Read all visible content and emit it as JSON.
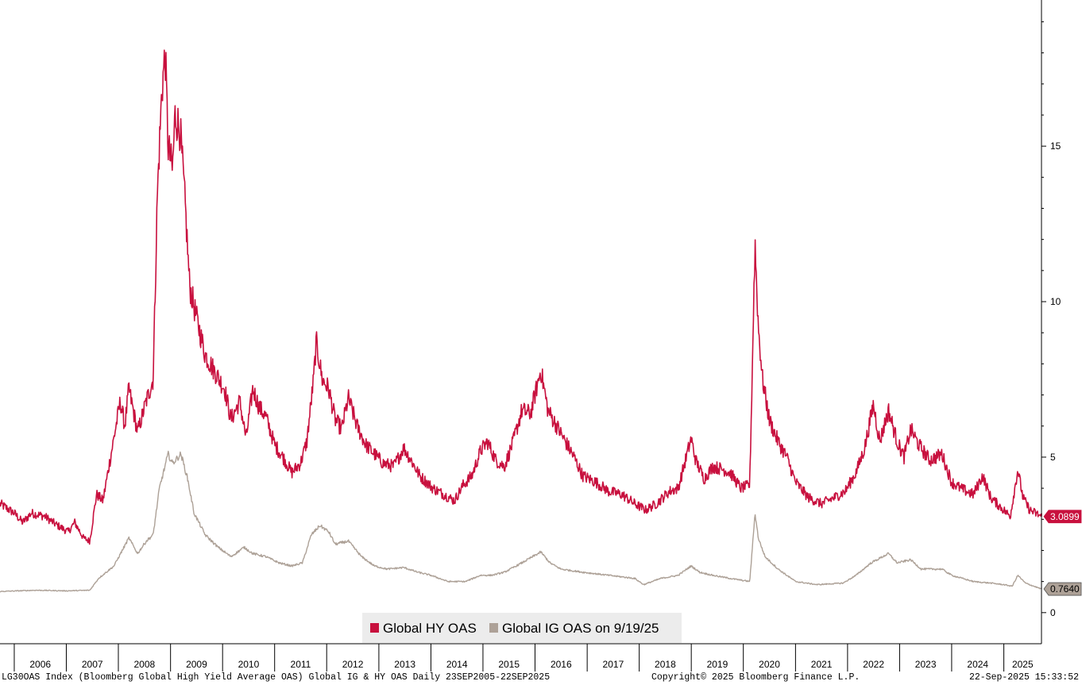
{
  "chart_data": {
    "type": "line",
    "title": "",
    "xlabel": "",
    "ylabel": "",
    "ylim": [
      -1.0,
      19.7
    ],
    "xlim": [
      "2005-09-23",
      "2025-09-22"
    ],
    "y_ticks": [
      "0",
      "5",
      "10",
      "15"
    ],
    "x_tick_labels": [
      "2006",
      "2007",
      "2008",
      "2009",
      "2010",
      "2011",
      "2012",
      "2013",
      "2014",
      "2015",
      "2016",
      "2017",
      "2018",
      "2019",
      "2020",
      "2021",
      "2022",
      "2023",
      "2024",
      "2025"
    ],
    "grid": false,
    "legend_position": "bottom-center",
    "series": [
      {
        "name": "Global HY OAS",
        "color": "#c8103e",
        "last_value": "3.0899",
        "points": [
          [
            "2005-09-23",
            3.5
          ],
          [
            "2006-01-01",
            3.2
          ],
          [
            "2006-03-01",
            2.9
          ],
          [
            "2006-05-01",
            3.2
          ],
          [
            "2006-08-01",
            3.1
          ],
          [
            "2006-11-01",
            2.8
          ],
          [
            "2007-01-15",
            2.6
          ],
          [
            "2007-03-01",
            2.9
          ],
          [
            "2007-05-01",
            2.4
          ],
          [
            "2007-06-15",
            2.3
          ],
          [
            "2007-08-01",
            3.8
          ],
          [
            "2007-09-15",
            3.6
          ],
          [
            "2007-11-15",
            5.2
          ],
          [
            "2008-01-15",
            6.8
          ],
          [
            "2008-02-15",
            6.0
          ],
          [
            "2008-03-15",
            7.2
          ],
          [
            "2008-05-15",
            5.8
          ],
          [
            "2008-07-15",
            6.8
          ],
          [
            "2008-09-01",
            7.5
          ],
          [
            "2008-10-01",
            13.5
          ],
          [
            "2008-11-01",
            16.8
          ],
          [
            "2008-11-25",
            18.0
          ],
          [
            "2008-12-15",
            15.0
          ],
          [
            "2009-01-15",
            14.2
          ],
          [
            "2009-02-01",
            16.0
          ],
          [
            "2009-03-10",
            15.5
          ],
          [
            "2009-04-15",
            13.0
          ],
          [
            "2009-05-15",
            10.5
          ],
          [
            "2009-07-01",
            9.5
          ],
          [
            "2009-09-01",
            8.3
          ],
          [
            "2009-11-01",
            7.8
          ],
          [
            "2010-01-15",
            7.2
          ],
          [
            "2010-03-01",
            6.2
          ],
          [
            "2010-05-01",
            6.8
          ],
          [
            "2010-06-15",
            5.6
          ],
          [
            "2010-08-01",
            7.2
          ],
          [
            "2010-09-15",
            6.6
          ],
          [
            "2010-11-01",
            6.3
          ],
          [
            "2011-01-01",
            5.4
          ],
          [
            "2011-03-01",
            5.0
          ],
          [
            "2011-05-01",
            4.5
          ],
          [
            "2011-07-01",
            4.8
          ],
          [
            "2011-08-15",
            5.5
          ],
          [
            "2011-10-01",
            7.5
          ],
          [
            "2011-10-20",
            8.7
          ],
          [
            "2011-12-01",
            7.5
          ],
          [
            "2012-01-15",
            7.2
          ],
          [
            "2012-03-01",
            6.2
          ],
          [
            "2012-04-15",
            5.9
          ],
          [
            "2012-06-01",
            6.9
          ],
          [
            "2012-08-01",
            6.0
          ],
          [
            "2012-10-01",
            5.4
          ],
          [
            "2012-12-01",
            5.1
          ],
          [
            "2013-02-01",
            4.8
          ],
          [
            "2013-04-15",
            4.7
          ],
          [
            "2013-06-25",
            5.3
          ],
          [
            "2013-08-15",
            4.9
          ],
          [
            "2013-10-15",
            4.4
          ],
          [
            "2014-01-15",
            4.0
          ],
          [
            "2014-04-01",
            3.8
          ],
          [
            "2014-06-15",
            3.6
          ],
          [
            "2014-08-15",
            4.1
          ],
          [
            "2014-10-15",
            4.4
          ],
          [
            "2014-12-15",
            5.2
          ],
          [
            "2015-02-01",
            5.5
          ],
          [
            "2015-04-01",
            4.9
          ],
          [
            "2015-06-01",
            4.7
          ],
          [
            "2015-08-01",
            5.5
          ],
          [
            "2015-10-01",
            6.5
          ],
          [
            "2015-12-01",
            6.4
          ],
          [
            "2016-02-11",
            7.8
          ],
          [
            "2016-04-01",
            6.5
          ],
          [
            "2016-06-01",
            6.0
          ],
          [
            "2016-08-01",
            5.5
          ],
          [
            "2016-10-01",
            5.0
          ],
          [
            "2016-12-01",
            4.4
          ],
          [
            "2017-03-01",
            4.2
          ],
          [
            "2017-06-01",
            3.9
          ],
          [
            "2017-09-01",
            3.8
          ],
          [
            "2017-12-01",
            3.5
          ],
          [
            "2018-02-15",
            3.3
          ],
          [
            "2018-05-01",
            3.5
          ],
          [
            "2018-08-01",
            3.9
          ],
          [
            "2018-10-01",
            4.0
          ],
          [
            "2018-12-31",
            5.6
          ],
          [
            "2019-02-01",
            4.9
          ],
          [
            "2019-04-01",
            4.3
          ],
          [
            "2019-06-01",
            4.7
          ],
          [
            "2019-08-15",
            4.6
          ],
          [
            "2019-10-01",
            4.5
          ],
          [
            "2019-12-15",
            4.0
          ],
          [
            "2020-02-15",
            4.1
          ],
          [
            "2020-03-23",
            11.9
          ],
          [
            "2020-04-15",
            9.2
          ],
          [
            "2020-05-15",
            7.5
          ],
          [
            "2020-07-01",
            6.2
          ],
          [
            "2020-09-01",
            5.5
          ],
          [
            "2020-11-01",
            5.0
          ],
          [
            "2021-01-01",
            4.2
          ],
          [
            "2021-04-01",
            3.7
          ],
          [
            "2021-07-01",
            3.5
          ],
          [
            "2021-10-01",
            3.7
          ],
          [
            "2021-12-15",
            3.9
          ],
          [
            "2022-03-01",
            4.5
          ],
          [
            "2022-05-01",
            5.3
          ],
          [
            "2022-07-01",
            6.7
          ],
          [
            "2022-08-15",
            5.5
          ],
          [
            "2022-10-15",
            6.5
          ],
          [
            "2022-12-15",
            5.5
          ],
          [
            "2023-02-01",
            5.0
          ],
          [
            "2023-03-20",
            5.9
          ],
          [
            "2023-05-15",
            5.4
          ],
          [
            "2023-08-01",
            4.9
          ],
          [
            "2023-10-25",
            5.1
          ],
          [
            "2023-12-31",
            4.2
          ],
          [
            "2024-03-01",
            4.0
          ],
          [
            "2024-06-01",
            3.8
          ],
          [
            "2024-08-05",
            4.4
          ],
          [
            "2024-10-01",
            3.7
          ],
          [
            "2024-12-31",
            3.3
          ],
          [
            "2025-02-15",
            3.1
          ],
          [
            "2025-04-09",
            4.6
          ],
          [
            "2025-05-15",
            3.7
          ],
          [
            "2025-07-01",
            3.3
          ],
          [
            "2025-09-22",
            3.09
          ]
        ]
      },
      {
        "name": "Global IG OAS on 9/19/25",
        "color": "#ada197",
        "last_value": "0.7640",
        "points": [
          [
            "2005-09-23",
            0.68
          ],
          [
            "2006-06-01",
            0.72
          ],
          [
            "2007-01-01",
            0.7
          ],
          [
            "2007-06-15",
            0.72
          ],
          [
            "2007-08-15",
            1.1
          ],
          [
            "2007-12-01",
            1.5
          ],
          [
            "2008-03-15",
            2.4
          ],
          [
            "2008-05-15",
            1.9
          ],
          [
            "2008-07-15",
            2.3
          ],
          [
            "2008-09-01",
            2.5
          ],
          [
            "2008-10-15",
            4.0
          ],
          [
            "2008-12-15",
            5.1
          ],
          [
            "2009-01-15",
            4.8
          ],
          [
            "2009-03-15",
            5.1
          ],
          [
            "2009-05-01",
            4.3
          ],
          [
            "2009-06-15",
            3.2
          ],
          [
            "2009-09-01",
            2.5
          ],
          [
            "2009-12-01",
            2.1
          ],
          [
            "2010-03-01",
            1.8
          ],
          [
            "2010-06-01",
            2.1
          ],
          [
            "2010-08-01",
            1.9
          ],
          [
            "2010-11-01",
            1.8
          ],
          [
            "2011-02-01",
            1.6
          ],
          [
            "2011-05-01",
            1.5
          ],
          [
            "2011-07-15",
            1.6
          ],
          [
            "2011-09-15",
            2.5
          ],
          [
            "2011-11-15",
            2.8
          ],
          [
            "2012-01-15",
            2.6
          ],
          [
            "2012-03-01",
            2.2
          ],
          [
            "2012-06-01",
            2.3
          ],
          [
            "2012-09-01",
            1.8
          ],
          [
            "2012-12-01",
            1.5
          ],
          [
            "2013-03-01",
            1.4
          ],
          [
            "2013-06-25",
            1.45
          ],
          [
            "2013-10-01",
            1.3
          ],
          [
            "2014-01-01",
            1.2
          ],
          [
            "2014-05-01",
            1.0
          ],
          [
            "2014-09-01",
            1.0
          ],
          [
            "2014-12-15",
            1.2
          ],
          [
            "2015-03-01",
            1.2
          ],
          [
            "2015-06-01",
            1.3
          ],
          [
            "2015-10-01",
            1.6
          ],
          [
            "2016-02-11",
            1.95
          ],
          [
            "2016-04-15",
            1.6
          ],
          [
            "2016-07-01",
            1.4
          ],
          [
            "2016-12-01",
            1.3
          ],
          [
            "2017-06-01",
            1.2
          ],
          [
            "2017-12-01",
            1.1
          ],
          [
            "2018-02-01",
            0.9
          ],
          [
            "2018-06-01",
            1.1
          ],
          [
            "2018-10-01",
            1.2
          ],
          [
            "2018-12-31",
            1.5
          ],
          [
            "2019-03-01",
            1.3
          ],
          [
            "2019-06-01",
            1.2
          ],
          [
            "2019-10-01",
            1.1
          ],
          [
            "2020-02-15",
            1.0
          ],
          [
            "2020-03-23",
            3.2
          ],
          [
            "2020-04-15",
            2.4
          ],
          [
            "2020-06-01",
            1.8
          ],
          [
            "2020-09-01",
            1.4
          ],
          [
            "2021-01-01",
            1.0
          ],
          [
            "2021-06-01",
            0.9
          ],
          [
            "2021-12-01",
            0.95
          ],
          [
            "2022-03-01",
            1.2
          ],
          [
            "2022-06-15",
            1.6
          ],
          [
            "2022-10-15",
            1.9
          ],
          [
            "2022-12-15",
            1.6
          ],
          [
            "2023-03-20",
            1.7
          ],
          [
            "2023-06-01",
            1.4
          ],
          [
            "2023-10-25",
            1.4
          ],
          [
            "2024-01-01",
            1.2
          ],
          [
            "2024-06-01",
            1.0
          ],
          [
            "2024-10-01",
            0.95
          ],
          [
            "2024-12-31",
            0.9
          ],
          [
            "2025-03-01",
            0.85
          ],
          [
            "2025-04-09",
            1.2
          ],
          [
            "2025-06-01",
            0.95
          ],
          [
            "2025-09-22",
            0.76
          ]
        ]
      }
    ]
  },
  "footer": {
    "left": "LG30OAS Index (Bloomberg Global High Yield Average OAS) Global IG & HY OAS  Daily 23SEP2005-22SEP2025",
    "center": "Copyright© 2025 Bloomberg Finance L.P.",
    "right": "22-Sep-2025 15:33:52"
  }
}
